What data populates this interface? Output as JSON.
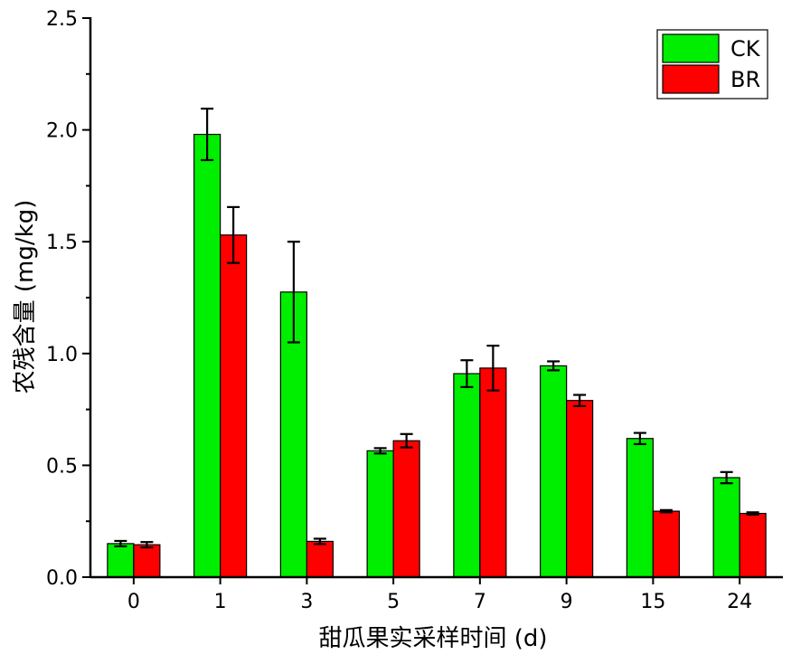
{
  "chart_data": {
    "type": "bar",
    "xlabel": "甜瓜果实采样时间 (d)",
    "ylabel": "农残含量 (mg/kg)",
    "ylim": [
      0,
      2.5
    ],
    "yticks": [
      0.0,
      0.5,
      1.0,
      1.5,
      2.0,
      2.5
    ],
    "ytick_labels": [
      "0.0",
      "0.5",
      "1.0",
      "1.5",
      "2.0",
      "2.5"
    ],
    "categories": [
      "0",
      "1",
      "3",
      "5",
      "7",
      "9",
      "15",
      "24"
    ],
    "series": [
      {
        "name": "CK",
        "color": "#00ee00",
        "values": [
          0.15,
          1.98,
          1.275,
          0.565,
          0.91,
          0.945,
          0.62,
          0.445
        ],
        "errors": [
          0.012,
          0.115,
          0.225,
          0.012,
          0.06,
          0.02,
          0.025,
          0.025
        ]
      },
      {
        "name": "BR",
        "color": "#ff0000",
        "values": [
          0.145,
          1.53,
          0.16,
          0.61,
          0.935,
          0.79,
          0.295,
          0.285
        ],
        "errors": [
          0.012,
          0.125,
          0.012,
          0.03,
          0.1,
          0.025,
          0.005,
          0.005
        ]
      }
    ],
    "legend_position": "top-right",
    "grid": false
  }
}
